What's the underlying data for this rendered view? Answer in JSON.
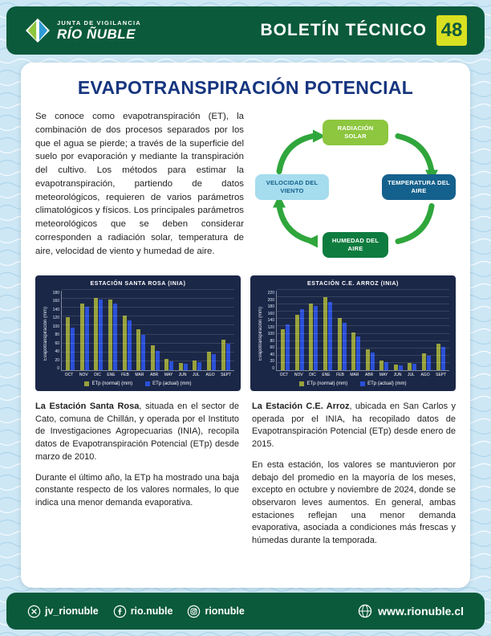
{
  "header": {
    "org_line1": "JUNTA DE VIGILANCIA",
    "org_line2": "RÍO ÑUBLE",
    "bulletin_title": "BOLETÍN TÉCNICO",
    "bulletin_number": "48"
  },
  "main": {
    "title": "EVAPOTRANSPIRACIÓN POTENCIAL",
    "intro": "Se conoce como evapotranspiración (ET), la combinación de dos procesos separados por los que el agua se pierde; a través de la superficie del suelo por evaporación y mediante la transpiración del cultivo. Los métodos para estimar la evapotranspiración, partiendo de datos meteorológicos, requieren de varios parámetros climatológicos y físicos. Los principales parámetros meteorológicos que se deben considerar corresponden a radiación solar, temperatura de aire, velocidad de viento y humedad de aire."
  },
  "diagram": {
    "top": "RADIACIÓN SOLAR",
    "right": "TEMPERATURA DEL AIRE",
    "bottom": "HUMEDAD DEL AIRE",
    "left": "VELOCIDAD DEL VIENTO"
  },
  "chart_data": [
    {
      "type": "bar",
      "title": "ESTACIÓN SANTA ROSA (INIA)",
      "ylabel": "Evapotranspiración (mm)",
      "categories": [
        "OCT",
        "NOV",
        "DIC",
        "ENE",
        "FEB",
        "MAR",
        "ABR",
        "MAY",
        "JUN",
        "JUL",
        "AGO",
        "SEPT"
      ],
      "series": [
        {
          "name": "ETp (normal) (mm)",
          "color": "#98a23c",
          "values": [
            118,
            150,
            162,
            158,
            122,
            92,
            55,
            25,
            16,
            22,
            42,
            68
          ]
        },
        {
          "name": "ETp (actual) (mm)",
          "color": "#2b50d8",
          "values": [
            96,
            142,
            158,
            150,
            112,
            80,
            44,
            20,
            14,
            18,
            36,
            60
          ]
        }
      ],
      "ylim": [
        0,
        180
      ],
      "tick_step": 20,
      "grid": true,
      "legend_position": "bottom"
    },
    {
      "type": "bar",
      "title": "ESTACIÓN C.E. ARROZ (INIA)",
      "ylabel": "Evapotranspiración (mm)",
      "categories": [
        "OCT",
        "NOV",
        "DIC",
        "ENE",
        "FEB",
        "MAR",
        "ABR",
        "MAY",
        "JUN",
        "JUL",
        "AGO",
        "SEPT"
      ],
      "series": [
        {
          "name": "ETp (normal) (mm)",
          "color": "#98a23c",
          "values": [
            112,
            152,
            182,
            200,
            142,
            104,
            58,
            26,
            16,
            20,
            46,
            72
          ]
        },
        {
          "name": "ETp (actual) (mm)",
          "color": "#2b50d8",
          "values": [
            126,
            168,
            175,
            188,
            130,
            92,
            48,
            22,
            14,
            18,
            40,
            64
          ]
        }
      ],
      "ylim": [
        0,
        220
      ],
      "tick_step": 20,
      "grid": true,
      "legend_position": "bottom"
    }
  ],
  "articles": {
    "santa_rosa": {
      "lead": "La Estación Santa Rosa",
      "para1": ", situada en el sector de Cato, comuna de Chillán, y operada por el Instituto de Investigaciones Agropecuarias (INIA), recopila datos de Evapotranspiración Potencial (ETp) desde marzo de 2010.",
      "para2": "Durante el último año, la ETp ha mostrado una baja constante respecto de los valores normales, lo que indica una menor demanda evaporativa."
    },
    "ce_arroz": {
      "lead": "La Estación C.E. Arroz",
      "para1": ", ubicada en San Carlos y operada por el INIA, ha recopilado datos de Evapotranspiración Potencial (ETp) desde enero de 2015.",
      "para2": "En esta estación, los valores se mantuvieron por debajo del promedio en la mayoría de los meses, excepto en octubre y noviembre de 2024, donde se observaron leves aumentos. En general, ambas estaciones reflejan una menor demanda evaporativa, asociada a condiciones más frescas y húmedas durante la temporada."
    }
  },
  "footer": {
    "social": [
      {
        "icon": "x-icon",
        "handle": "jv_rionuble"
      },
      {
        "icon": "facebook-icon",
        "handle": "rio.nuble"
      },
      {
        "icon": "instagram-icon",
        "handle": "rionuble"
      }
    ],
    "website": "www.rionuble.cl"
  },
  "colors": {
    "brand_green": "#0b5a3c",
    "accent_lime": "#d9e021",
    "title_blue": "#16357f",
    "chart_bg": "#1b2747",
    "normal_series": "#98a23c",
    "actual_series": "#2b50d8",
    "arrow_green": "#2fa63c"
  }
}
